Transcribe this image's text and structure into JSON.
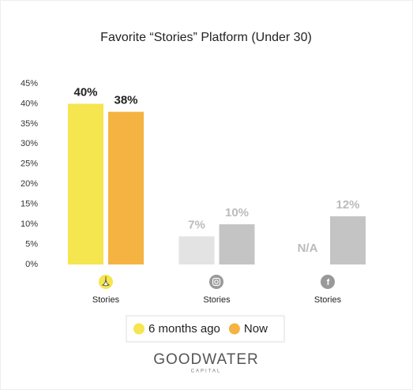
{
  "chart_data": {
    "type": "bar",
    "title": "Favorite “Stories” Platform (Under 30)",
    "categories": [
      "Stories",
      "Stories",
      "Stories"
    ],
    "series": [
      {
        "name": "6 months ago",
        "color": "#f5e54f",
        "colors": [
          "#f5e54f",
          "#e3e3e3",
          "#e3e3e3"
        ],
        "values": [
          40,
          7,
          null
        ],
        "value_labels": [
          "40%",
          "7%",
          "N/A"
        ]
      },
      {
        "name": "Now",
        "color": "#f5b342",
        "colors": [
          "#f5b342",
          "#c4c4c4",
          "#c4c4c4"
        ],
        "values": [
          38,
          10,
          12
        ],
        "value_labels": [
          "38%",
          "10%",
          "12%"
        ]
      }
    ],
    "ylim": [
      0,
      45
    ],
    "yticks": [
      {
        "value": 0,
        "label": "0%"
      },
      {
        "value": 5,
        "label": "5%"
      },
      {
        "value": 10,
        "label": "10%"
      },
      {
        "value": 15,
        "label": "15%"
      },
      {
        "value": 20,
        "label": "20%"
      },
      {
        "value": 25,
        "label": "25%"
      },
      {
        "value": 30,
        "label": "30%"
      },
      {
        "value": 35,
        "label": "35%"
      },
      {
        "value": 40,
        "label": "40%"
      },
      {
        "value": 45,
        "label": "45%"
      }
    ],
    "grid": false
  },
  "logo": {
    "name": "GOODWATER",
    "sub": "CAPITAL"
  }
}
